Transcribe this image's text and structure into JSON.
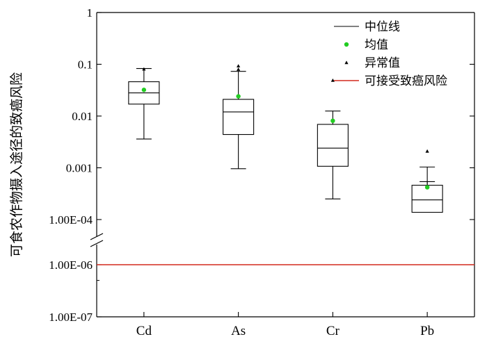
{
  "chart_data": {
    "type": "box",
    "ylabel": "可食农作物摄入途径的致癌风险",
    "yscale": "log-broken",
    "ylim": [
      1e-07,
      1
    ],
    "axis_break": {
      "lower_max": 1e-06,
      "upper_min": 0.0001
    },
    "yticks": [
      {
        "value": 1,
        "label": "1"
      },
      {
        "value": 0.1,
        "label": "0.1"
      },
      {
        "value": 0.01,
        "label": "0.01"
      },
      {
        "value": 0.001,
        "label": "0.001"
      },
      {
        "value": 0.0001,
        "label": "1.00E-04"
      },
      {
        "value": 1e-06,
        "label": "1.00E-06"
      },
      {
        "value": 1e-07,
        "label": "1.00E-07"
      }
    ],
    "categories": [
      "Cd",
      "As",
      "Cr",
      "Pb"
    ],
    "boxes": [
      {
        "category": "Cd",
        "whisker_low": 0.0036,
        "q1": 0.017,
        "median": 0.028,
        "q3": 0.046,
        "whisker_high": 0.083,
        "mean": 0.032,
        "outliers": [
          0.081
        ]
      },
      {
        "category": "As",
        "whisker_low": 0.00096,
        "q1": 0.0044,
        "median": 0.012,
        "q3": 0.021,
        "whisker_high": 0.073,
        "mean": 0.024,
        "outliers": [
          0.08,
          0.093
        ]
      },
      {
        "category": "Cr",
        "whisker_low": 0.00025,
        "q1": 0.00107,
        "median": 0.0024,
        "q3": 0.0069,
        "whisker_high": 0.0125,
        "mean": 0.0081,
        "outliers": [
          0.049
        ]
      },
      {
        "category": "Pb",
        "whisker_low": 7.5e-05,
        "q1": 0.000138,
        "median": 0.00024,
        "q3": 0.00046,
        "whisker_high": 0.00054,
        "mean": 0.00042,
        "outliers": [
          0.0021
        ]
      }
    ],
    "reference_line": {
      "name": "可接受致癌风险",
      "value": 1e-06,
      "color": "#d42a1e"
    },
    "legend": {
      "placement": "top-right",
      "items": [
        {
          "name": "中位线",
          "marker": "line",
          "color": "#000000"
        },
        {
          "name": "均值",
          "marker": "circle",
          "color": "#22cc22"
        },
        {
          "name": "异常值",
          "marker": "triangle",
          "color": "#000000"
        },
        {
          "name": "可接受致癌风险",
          "marker": "line",
          "color": "#d42a1e"
        }
      ]
    },
    "grid": false
  }
}
